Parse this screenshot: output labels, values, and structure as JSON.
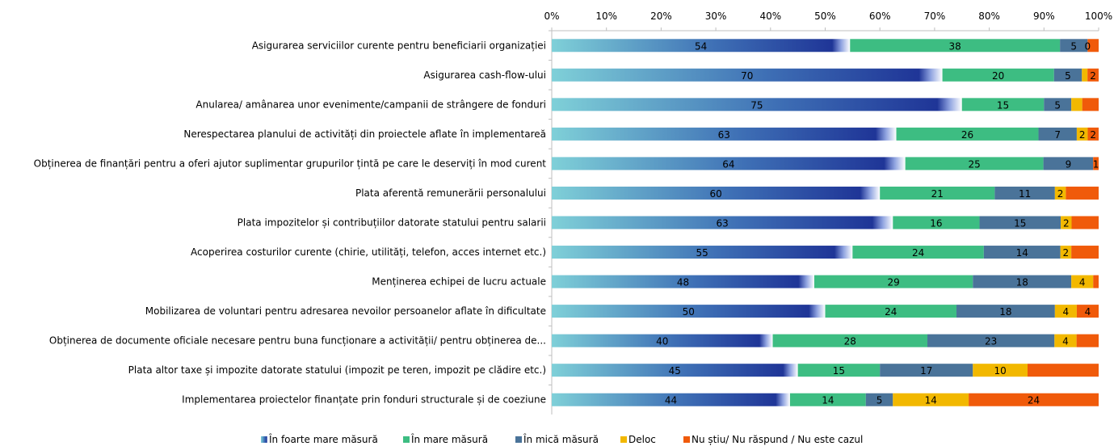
{
  "chart_data": {
    "type": "bar",
    "orientation": "horizontal",
    "stacked": true,
    "percent_stacked": true,
    "xlim": [
      0,
      100
    ],
    "x_ticks": [
      "0%",
      "10%",
      "20%",
      "30%",
      "40%",
      "50%",
      "60%",
      "70%",
      "80%",
      "90%",
      "100%"
    ],
    "categories": [
      "Asigurarea serviciilor curente pentru beneficiarii organizației",
      "Asigurarea cash-flow-ului",
      "Anularea/ amânarea unor evenimente/campanii de strângere de fonduri",
      "Nerespectarea planului de activități din proiectele aflate în implementareă",
      "Obținerea de finanțări pentru a oferi ajutor suplimentar grupurilor țintă pe care le deserviți în mod curent",
      "Plata aferentă remunerării personalului",
      "Plata impozitelor și contribuțiilor datorate statului pentru salarii",
      "Acoperirea costurilor curente (chirie, utilități, telefon, acces internet etc.)",
      "Menținerea echipei de lucru actuale",
      "Mobilizarea de voluntari pentru adresarea nevoilor persoanelor aflate în dificultate",
      "Obținerea de documente oficiale necesare pentru buna funcționare a activității/ pentru obținerea de...",
      "Plata altor taxe și impozite datorate statului (impozit pe teren, impozit pe clădire etc.)",
      "Implementarea proiectelor finanțate prin fonduri structurale și de coeziune"
    ],
    "series": [
      {
        "name": "În foarte mare măsură",
        "color": "#1F3597",
        "values": [
          54,
          70,
          75,
          63,
          64,
          60,
          63,
          55,
          48,
          50,
          40,
          45,
          44
        ],
        "labels": [
          "54",
          "70",
          "75",
          "63",
          "64",
          "60",
          "63",
          "55",
          "48",
          "50",
          "40",
          "45",
          "44"
        ]
      },
      {
        "name": "În mare măsură",
        "color": "#3DBD82",
        "values": [
          38,
          20,
          15,
          26,
          25,
          21,
          16,
          24,
          29,
          24,
          28,
          15,
          14
        ],
        "labels": [
          "38",
          "20",
          "15",
          "26",
          "25",
          "21",
          "16",
          "24",
          "29",
          "24",
          "28",
          "15",
          "14"
        ]
      },
      {
        "name": "În mică măsură",
        "color": "#4A7399",
        "values": [
          5,
          5,
          5,
          7,
          9,
          11,
          15,
          14,
          18,
          18,
          23,
          17,
          5
        ],
        "labels": [
          "5",
          "5",
          "5",
          "7",
          "9",
          "11",
          "15",
          "14",
          "18",
          "18",
          "23",
          "17",
          "5"
        ]
      },
      {
        "name": "Deloc",
        "color": "#F2B800",
        "values": [
          0,
          1,
          2,
          2,
          0,
          2,
          2,
          2,
          4,
          4,
          4,
          10,
          14
        ],
        "labels": [
          "0",
          "",
          "",
          "2",
          "",
          "2",
          "2",
          "2",
          "4",
          "4",
          "4",
          "10",
          "14"
        ]
      },
      {
        "name": "Nu știu/ Nu răspund / Nu este cazul",
        "color": "#F05A0A",
        "values": [
          2,
          2,
          3,
          2,
          1,
          6,
          5,
          5,
          1,
          4,
          4,
          13,
          24
        ],
        "labels": [
          "",
          "2",
          "",
          "2",
          "1",
          "",
          "",
          "",
          "",
          "4",
          "",
          "",
          "24"
        ]
      }
    ],
    "legend_position": "bottom",
    "grid": false
  }
}
